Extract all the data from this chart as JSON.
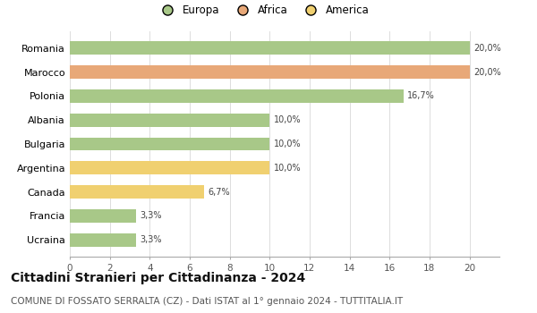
{
  "categories": [
    "Ucraina",
    "Francia",
    "Canada",
    "Argentina",
    "Bulgaria",
    "Albania",
    "Polonia",
    "Marocco",
    "Romania"
  ],
  "values": [
    3.3,
    3.3,
    6.7,
    10.0,
    10.0,
    10.0,
    16.7,
    20.0,
    20.0
  ],
  "labels": [
    "3,3%",
    "3,3%",
    "6,7%",
    "10,0%",
    "10,0%",
    "10,0%",
    "16,7%",
    "20,0%",
    "20,0%"
  ],
  "colors": [
    "#a8c888",
    "#a8c888",
    "#f0d070",
    "#f0d070",
    "#a8c888",
    "#a8c888",
    "#a8c888",
    "#e8a878",
    "#a8c888"
  ],
  "legend": [
    {
      "label": "Europa",
      "color": "#a8c888"
    },
    {
      "label": "Africa",
      "color": "#e8a878"
    },
    {
      "label": "America",
      "color": "#f0d070"
    }
  ],
  "xlim": [
    0,
    21.5
  ],
  "xticks": [
    0,
    2,
    4,
    6,
    8,
    10,
    12,
    14,
    16,
    18,
    20
  ],
  "title": "Cittadini Stranieri per Cittadinanza - 2024",
  "subtitle": "COMUNE DI FOSSATO SERRALTA (CZ) - Dati ISTAT al 1° gennaio 2024 - TUTTITALIA.IT",
  "title_fontsize": 10,
  "subtitle_fontsize": 7.5,
  "bar_height": 0.55,
  "background_color": "#ffffff",
  "grid_color": "#dddddd"
}
